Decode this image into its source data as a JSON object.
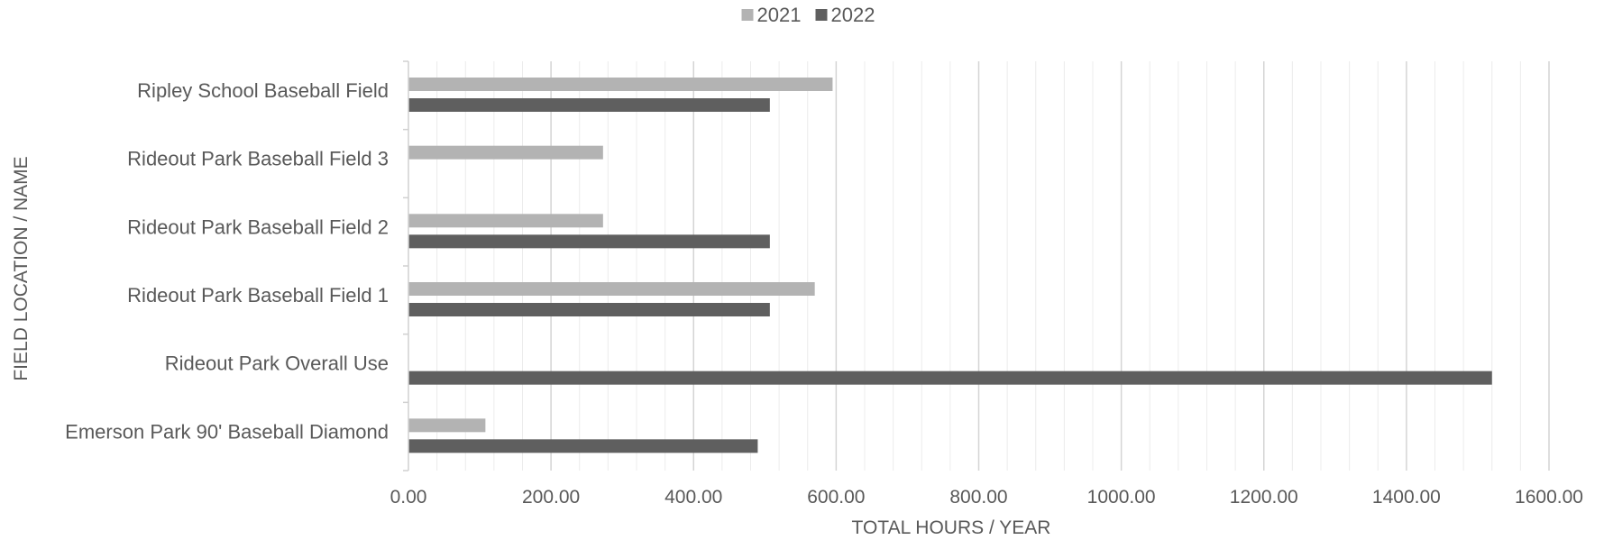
{
  "chart_data": {
    "type": "bar",
    "orientation": "horizontal",
    "categories": [
      "Ripley School Baseball Field",
      "Rideout Park Baseball Field 3",
      "Rideout Park Baseball Field 2",
      "Rideout Park Baseball Field 1",
      "Rideout Park Overall Use",
      "Emerson Park 90' Baseball Diamond"
    ],
    "series": [
      {
        "name": "2021",
        "color": "#b3b3b3",
        "values": [
          595,
          273,
          273,
          570,
          null,
          108
        ]
      },
      {
        "name": "2022",
        "color": "#5f5f5f",
        "values": [
          507,
          null,
          507,
          507,
          1520,
          490
        ]
      }
    ],
    "xlim": [
      0,
      1600
    ],
    "x_major_step": 200,
    "x_minor_step": 40,
    "x_tick_labels": [
      "0.00",
      "200.00",
      "400.00",
      "600.00",
      "800.00",
      "1000.00",
      "1200.00",
      "1400.00",
      "1600.00"
    ],
    "xlabel": "TOTAL HOURS / YEAR",
    "ylabel": "FIELD LOCATION / NAME",
    "grid": true,
    "legend_position": "top-center"
  }
}
